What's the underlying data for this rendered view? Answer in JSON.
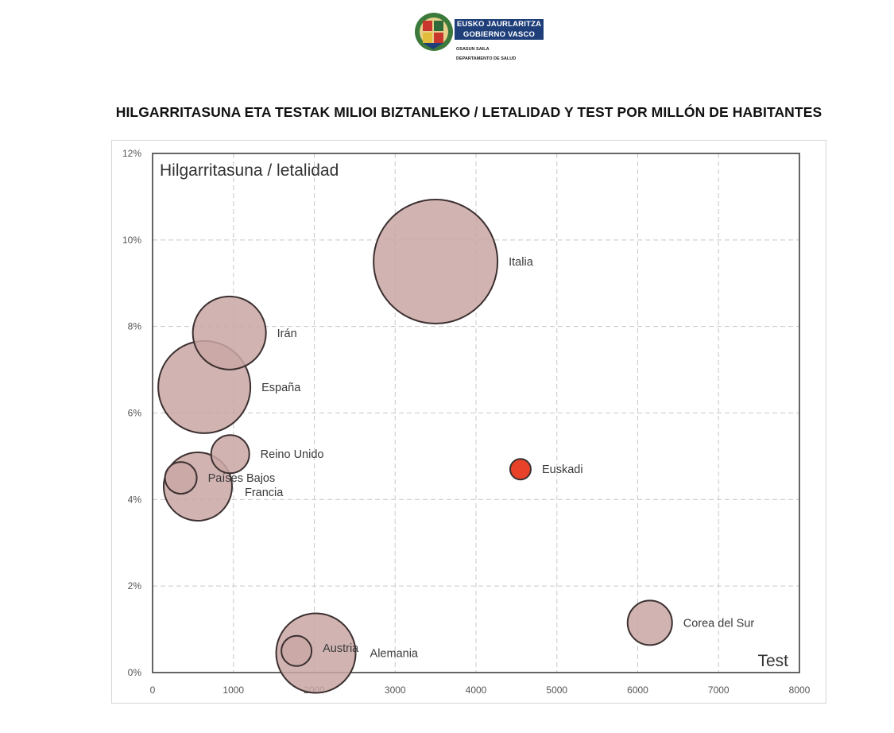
{
  "header": {
    "logo": {
      "name_line1": "EUSKO JAURLARITZA",
      "name_line2": "GOBIERNO VASCO",
      "dept_line1": "OSASUN SAILA",
      "dept_line2": "DEPARTAMENTO DE SALUD"
    }
  },
  "page_title": "HILGARRITASUNA ETA TESTAK MILIOI BIZTANLEKO / LETALIDAD Y TEST POR MILLÓN DE HABITANTES",
  "chart_data": {
    "type": "scatter",
    "subtype": "bubble",
    "title": "",
    "xlabel": "Test",
    "ylabel": "Hilgarritasuna / letalidad",
    "xlim": [
      0,
      8000
    ],
    "ylim": [
      0,
      0.12
    ],
    "x_ticks": [
      "0",
      "1000",
      "2000",
      "3000",
      "4000",
      "5000",
      "6000",
      "7000",
      "8000"
    ],
    "y_ticks": [
      "0%",
      "2%",
      "4%",
      "6%",
      "8%",
      "10%",
      "12%"
    ],
    "grid": true,
    "legend": "none",
    "colors": {
      "bubble_fill": "#c9a7a4",
      "bubble_stroke": "#3c3030",
      "highlight_fill": "#e8432a"
    },
    "series": [
      {
        "points": [
          {
            "label": "Italia",
            "x": 3500,
            "y": 0.095,
            "size": 78
          },
          {
            "label": "Irán",
            "x": 950,
            "y": 0.0785,
            "size": 46
          },
          {
            "label": "España",
            "x": 640,
            "y": 0.066,
            "size": 58
          },
          {
            "label": "Reino Unido",
            "x": 960,
            "y": 0.0505,
            "size": 24
          },
          {
            "label": "Francia",
            "x": 560,
            "y": 0.043,
            "size": 43
          },
          {
            "label": "Países Bajos",
            "x": 350,
            "y": 0.045,
            "size": 20
          },
          {
            "label": "Euskadi",
            "x": 4550,
            "y": 0.047,
            "size": 13,
            "highlight": true
          },
          {
            "label": "Corea del Sur",
            "x": 6150,
            "y": 0.0115,
            "size": 28
          },
          {
            "label": "Alemania",
            "x": 2020,
            "y": 0.0045,
            "size": 50
          },
          {
            "label": "Austria",
            "x": 1780,
            "y": 0.005,
            "size": 19
          }
        ]
      }
    ]
  }
}
